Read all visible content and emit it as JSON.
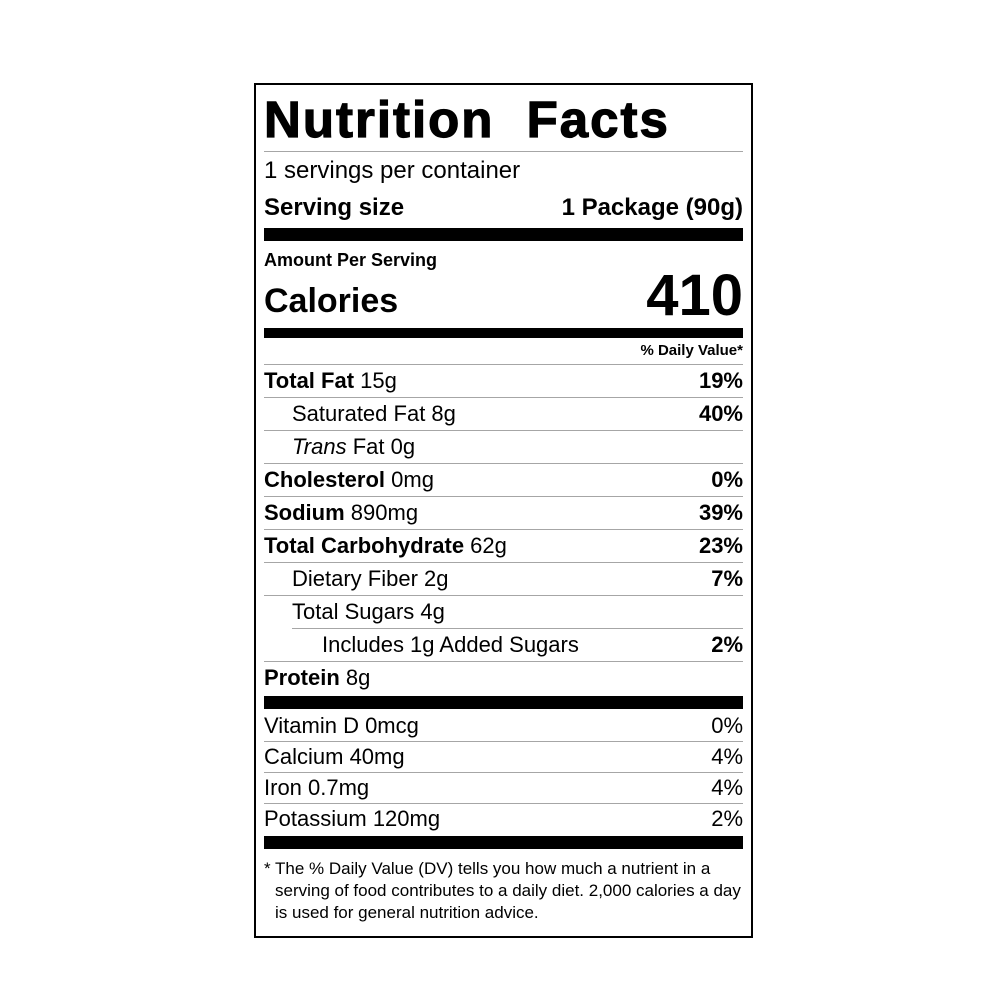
{
  "colors": {
    "text": "#000000",
    "background": "#ffffff",
    "divider": "#a6a6a6"
  },
  "label": {
    "title": "Nutrition Facts",
    "servings_per_container": "1 servings per container",
    "serving_size_label": "Serving size",
    "serving_size_value": "1 Package (90g)",
    "amount_per_serving": "Amount Per Serving",
    "calories_label": "Calories",
    "calories_value": "410",
    "daily_value_header": "% Daily Value*",
    "nutrients": [
      {
        "indent": 0,
        "bold": "Total Fat",
        "text": " 15g",
        "dv": "19%",
        "dv_bold": true
      },
      {
        "indent": 1,
        "bold": "",
        "text": "Saturated Fat 8g",
        "dv": "40%",
        "dv_bold": true
      },
      {
        "indent": 1,
        "bold": "",
        "italic": "Trans",
        "text": " Fat 0g",
        "dv": "",
        "dv_bold": false
      },
      {
        "indent": 0,
        "bold": "Cholesterol",
        "text": " 0mg",
        "dv": "0%",
        "dv_bold": true
      },
      {
        "indent": 0,
        "bold": "Sodium",
        "text": " 890mg",
        "dv": "39%",
        "dv_bold": true
      },
      {
        "indent": 0,
        "bold": "Total Carbohydrate",
        "text": " 62g",
        "dv": "23%",
        "dv_bold": true
      },
      {
        "indent": 1,
        "bold": "",
        "text": "Dietary Fiber 2g",
        "dv": "7%",
        "dv_bold": true
      },
      {
        "indent": 1,
        "bold": "",
        "text": "Total Sugars 4g",
        "dv": "",
        "dv_bold": false
      },
      {
        "indent": 2,
        "bold": "",
        "text": "Includes 1g Added Sugars",
        "dv": "2%",
        "dv_bold": true,
        "divider_indent": true
      },
      {
        "indent": 0,
        "bold": "Protein",
        "text": " 8g",
        "dv": "",
        "dv_bold": false
      }
    ],
    "vitamins": [
      {
        "indent": 0,
        "bold": "",
        "text": "Vitamin D 0mcg",
        "dv": "0%",
        "dv_bold": false
      },
      {
        "indent": 0,
        "bold": "",
        "text": "Calcium 40mg",
        "dv": "4%",
        "dv_bold": false
      },
      {
        "indent": 0,
        "bold": "",
        "text": "Iron 0.7mg",
        "dv": "4%",
        "dv_bold": false
      },
      {
        "indent": 0,
        "bold": "",
        "text": "Potassium 120mg",
        "dv": "2%",
        "dv_bold": false
      }
    ],
    "footnote_marker": "*",
    "footnote": "The % Daily Value (DV) tells you how much a nutrient in a serving of food contributes to a daily diet. 2,000 calories a day is used for general nutrition advice."
  }
}
